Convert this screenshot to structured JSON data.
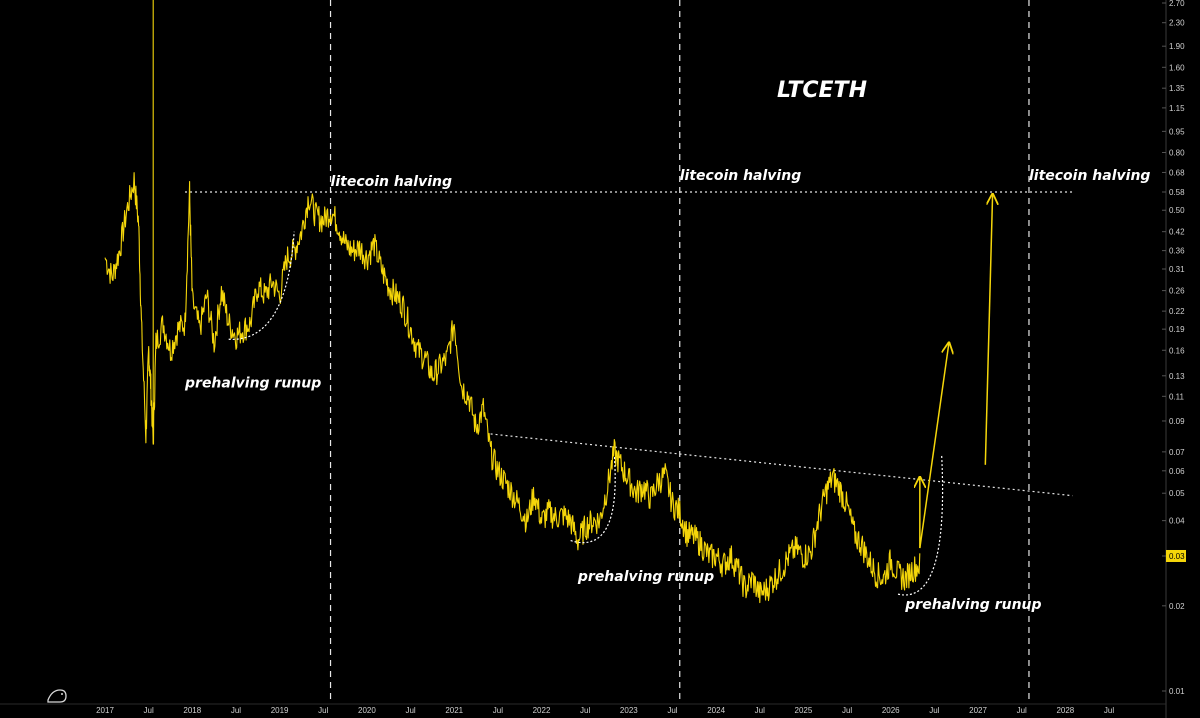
{
  "chart_data": {
    "type": "line",
    "title": "LTCETH",
    "y_scale": "log",
    "ylim": [
      0.01,
      2.7
    ],
    "xlim": [
      "2016-12",
      "2028-09"
    ],
    "y_ticks": [
      "2.70",
      "2.30",
      "1.90",
      "1.60",
      "1.35",
      "1.15",
      "0.95",
      "0.80",
      "0.68",
      "0.58",
      "0.50",
      "0.42",
      "0.36",
      "0.31",
      "0.26",
      "0.22",
      "0.19",
      "0.16",
      "0.13",
      "0.11",
      "0.09",
      "0.07",
      "0.06",
      "0.05",
      "0.04",
      "0.03",
      "0.02",
      "0.01"
    ],
    "x_ticks": [
      {
        "label": "2017",
        "date": "2017-01"
      },
      {
        "label": "Jul",
        "date": "2017-07"
      },
      {
        "label": "2018",
        "date": "2018-01"
      },
      {
        "label": "Jul",
        "date": "2018-07"
      },
      {
        "label": "2019",
        "date": "2019-01"
      },
      {
        "label": "Jul",
        "date": "2019-07"
      },
      {
        "label": "2020",
        "date": "2020-01"
      },
      {
        "label": "Jul",
        "date": "2020-07"
      },
      {
        "label": "2021",
        "date": "2021-01"
      },
      {
        "label": "Jul",
        "date": "2021-07"
      },
      {
        "label": "2022",
        "date": "2022-01"
      },
      {
        "label": "Jul",
        "date": "2022-07"
      },
      {
        "label": "2023",
        "date": "2023-01"
      },
      {
        "label": "Jul",
        "date": "2023-07"
      },
      {
        "label": "2024",
        "date": "2024-01"
      },
      {
        "label": "Jul",
        "date": "2024-07"
      },
      {
        "label": "2025",
        "date": "2025-01"
      },
      {
        "label": "Jul",
        "date": "2025-07"
      },
      {
        "label": "2026",
        "date": "2026-01"
      },
      {
        "label": "Jul",
        "date": "2026-07"
      },
      {
        "label": "2027",
        "date": "2027-01"
      },
      {
        "label": "Jul",
        "date": "2027-07"
      },
      {
        "label": "2028",
        "date": "2028-01"
      },
      {
        "label": "Jul",
        "date": "2028-07"
      }
    ],
    "current_price": "0.03",
    "series": [
      {
        "color": "#f5d60a",
        "points": [
          [
            "2017-01",
            0.34
          ],
          [
            "2017-02",
            0.29
          ],
          [
            "2017-03",
            0.36
          ],
          [
            "2017-04",
            0.5
          ],
          [
            "2017-05",
            0.64
          ],
          [
            "2017-05-20",
            0.45
          ],
          [
            "2017-06",
            0.2
          ],
          [
            "2017-06-20",
            0.08
          ],
          [
            "2017-07",
            0.16
          ],
          [
            "2017-07-10",
            0.12
          ],
          [
            "2017-07-20",
            0.075
          ],
          [
            "2017-08",
            0.17
          ],
          [
            "2017-09",
            0.2
          ],
          [
            "2017-10",
            0.16
          ],
          [
            "2017-11",
            0.19
          ],
          [
            "2017-12",
            0.2
          ],
          [
            "2017-12-20",
            0.58
          ],
          [
            "2018-01",
            0.24
          ],
          [
            "2018-02",
            0.19
          ],
          [
            "2018-03",
            0.25
          ],
          [
            "2018-04",
            0.17
          ],
          [
            "2018-05",
            0.26
          ],
          [
            "2018-06",
            0.2
          ],
          [
            "2018-07",
            0.18
          ],
          [
            "2018-08",
            0.19
          ],
          [
            "2018-09",
            0.2
          ],
          [
            "2018-10",
            0.27
          ],
          [
            "2018-11",
            0.25
          ],
          [
            "2018-12",
            0.28
          ],
          [
            "2019-01",
            0.25
          ],
          [
            "2019-02",
            0.34
          ],
          [
            "2019-03",
            0.36
          ],
          [
            "2019-04",
            0.42
          ],
          [
            "2019-05",
            0.56
          ],
          [
            "2019-06",
            0.48
          ],
          [
            "2019-07",
            0.46
          ],
          [
            "2019-08",
            0.5
          ],
          [
            "2019-09",
            0.45
          ],
          [
            "2019-10",
            0.38
          ],
          [
            "2019-11",
            0.36
          ],
          [
            "2019-12",
            0.37
          ],
          [
            "2020-01",
            0.34
          ],
          [
            "2020-02",
            0.38
          ],
          [
            "2020-03",
            0.31
          ],
          [
            "2020-04",
            0.27
          ],
          [
            "2020-05",
            0.25
          ],
          [
            "2020-06",
            0.23
          ],
          [
            "2020-07",
            0.19
          ],
          [
            "2020-08",
            0.16
          ],
          [
            "2020-09",
            0.15
          ],
          [
            "2020-10",
            0.13
          ],
          [
            "2020-11",
            0.14
          ],
          [
            "2020-12",
            0.15
          ],
          [
            "2021-01",
            0.2
          ],
          [
            "2021-02",
            0.12
          ],
          [
            "2021-03",
            0.11
          ],
          [
            "2021-04",
            0.085
          ],
          [
            "2021-05",
            0.1
          ],
          [
            "2021-06",
            0.07
          ],
          [
            "2021-07",
            0.06
          ],
          [
            "2021-08",
            0.055
          ],
          [
            "2021-09",
            0.05
          ],
          [
            "2021-10",
            0.045
          ],
          [
            "2021-11",
            0.04
          ],
          [
            "2021-12",
            0.05
          ],
          [
            "2022-01",
            0.04
          ],
          [
            "2022-02",
            0.043
          ],
          [
            "2022-03",
            0.041
          ],
          [
            "2022-04",
            0.042
          ],
          [
            "2022-05",
            0.04
          ],
          [
            "2022-06",
            0.034
          ],
          [
            "2022-07",
            0.038
          ],
          [
            "2022-08",
            0.04
          ],
          [
            "2022-09",
            0.04
          ],
          [
            "2022-10",
            0.052
          ],
          [
            "2022-11",
            0.07
          ],
          [
            "2022-12",
            0.062
          ],
          [
            "2023-01",
            0.056
          ],
          [
            "2023-02",
            0.05
          ],
          [
            "2023-03",
            0.053
          ],
          [
            "2023-04",
            0.048
          ],
          [
            "2023-05",
            0.055
          ],
          [
            "2023-06",
            0.058
          ],
          [
            "2023-07",
            0.046
          ],
          [
            "2023-08",
            0.043
          ],
          [
            "2023-09",
            0.036
          ],
          [
            "2023-10",
            0.035
          ],
          [
            "2023-11",
            0.033
          ],
          [
            "2023-12",
            0.03
          ],
          [
            "2024-01",
            0.03
          ],
          [
            "2024-02",
            0.028
          ],
          [
            "2024-03",
            0.03
          ],
          [
            "2024-04",
            0.027
          ],
          [
            "2024-05",
            0.023
          ],
          [
            "2024-06",
            0.025
          ],
          [
            "2024-07",
            0.022
          ],
          [
            "2024-08",
            0.023
          ],
          [
            "2024-09",
            0.025
          ],
          [
            "2024-10",
            0.027
          ],
          [
            "2024-11",
            0.03
          ],
          [
            "2024-12",
            0.032
          ],
          [
            "2025-01",
            0.03
          ],
          [
            "2025-02",
            0.031
          ],
          [
            "2025-03",
            0.04
          ],
          [
            "2025-04",
            0.05
          ],
          [
            "2025-05",
            0.057
          ],
          [
            "2025-06",
            0.052
          ],
          [
            "2025-07",
            0.045
          ],
          [
            "2025-08",
            0.036
          ],
          [
            "2025-09",
            0.033
          ],
          [
            "2025-10",
            0.029
          ],
          [
            "2025-11",
            0.026
          ],
          [
            "2025-12",
            0.025
          ],
          [
            "2026-01",
            0.029
          ],
          [
            "2026-02",
            0.026
          ],
          [
            "2026-03",
            0.025
          ],
          [
            "2026-04",
            0.027
          ],
          [
            "2026-05",
            0.028
          ]
        ]
      }
    ],
    "annotations": [
      {
        "text": "litecoin halving",
        "date": "2019-08",
        "value": 0.61
      },
      {
        "text": "litecoin halving",
        "date": "2023-08",
        "value": 0.64
      },
      {
        "text": "litecoin halving",
        "date": "2027-08",
        "value": 0.64
      },
      {
        "text": "prehalving runup",
        "date": "2017-12",
        "value": 0.118
      },
      {
        "text": "prehalving runup",
        "date": "2022-06",
        "value": 0.0245
      },
      {
        "text": "prehalving runup",
        "date": "2026-03",
        "value": 0.0195
      }
    ],
    "halving_dates": [
      "2019-08",
      "2023-08",
      "2027-08"
    ],
    "resistance_line": {
      "start": [
        "2017-12",
        0.58
      ],
      "end": [
        "2028-02",
        0.58
      ]
    },
    "descending_trendline": {
      "start": [
        "2021-06",
        0.081
      ],
      "end": [
        "2028-02",
        0.049
      ]
    },
    "projection_arrows": [
      {
        "start": [
          "2026-05",
          0.032
        ],
        "end": [
          "2026-09",
          0.17
        ]
      },
      {
        "start": [
          "2026-05",
          0.032
        ],
        "end": [
          "2026-05",
          0.057
        ]
      },
      {
        "start": [
          "2027-02",
          0.063
        ],
        "end": [
          "2027-03",
          0.57
        ]
      }
    ]
  }
}
